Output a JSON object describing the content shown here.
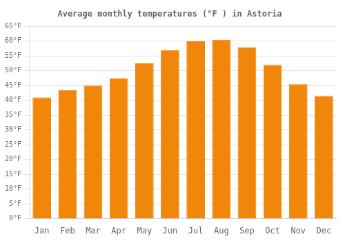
{
  "chart_data": {
    "type": "bar",
    "title": "Average monthly temperatures (°F ) in Astoria",
    "categories": [
      "Jan",
      "Feb",
      "Mar",
      "Apr",
      "May",
      "Jun",
      "Jul",
      "Aug",
      "Sep",
      "Oct",
      "Nov",
      "Dec"
    ],
    "values": [
      41,
      43.5,
      45,
      47.5,
      52.5,
      57,
      60,
      60.5,
      58,
      52,
      45.5,
      41.5
    ],
    "color": "#F0860A",
    "ylim": [
      0,
      65
    ],
    "yticks": [
      {
        "value": 0,
        "label": "0°F"
      },
      {
        "value": 5,
        "label": "5°F"
      },
      {
        "value": 10,
        "label": "10°F"
      },
      {
        "value": 15,
        "label": "15°F"
      },
      {
        "value": 20,
        "label": "20°F"
      },
      {
        "value": 25,
        "label": "25°F"
      },
      {
        "value": 30,
        "label": "30°F"
      },
      {
        "value": 35,
        "label": "35°F"
      },
      {
        "value": 40,
        "label": "40°F"
      },
      {
        "value": 45,
        "label": "45°F"
      },
      {
        "value": 50,
        "label": "50°F"
      },
      {
        "value": 55,
        "label": "55°F"
      },
      {
        "value": 60,
        "label": "60°F"
      },
      {
        "value": 65,
        "label": "65°F"
      }
    ],
    "grid": true
  }
}
